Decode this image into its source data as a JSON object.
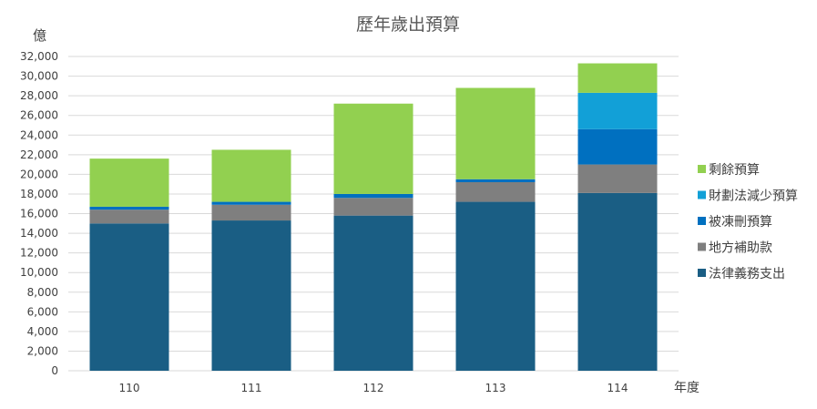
{
  "chart_data": {
    "type": "bar",
    "stacked": true,
    "title": "歷年歲出預算",
    "ylabel": "億",
    "xlabel": "年度",
    "ylim": [
      0,
      32000
    ],
    "ytick_step": 2000,
    "yticks": [
      "0",
      "2,000",
      "4,000",
      "6,000",
      "8,000",
      "10,000",
      "12,000",
      "14,000",
      "16,000",
      "18,000",
      "20,000",
      "22,000",
      "24,000",
      "26,000",
      "28,000",
      "30,000",
      "32,000"
    ],
    "categories": [
      "110",
      "111",
      "112",
      "113",
      "114"
    ],
    "legend_position": "right",
    "series": [
      {
        "name": "法律義務支出",
        "color": "#1a5e84",
        "values": [
          15000,
          15300,
          15800,
          17200,
          18100
        ]
      },
      {
        "name": "地方補助款",
        "color": "#7f7f7f",
        "values": [
          1400,
          1600,
          1800,
          2000,
          2900
        ]
      },
      {
        "name": "被凍刪預算",
        "color": "#0070c0",
        "values": [
          300,
          300,
          400,
          300,
          3600
        ]
      },
      {
        "name": "財劃法減少預算",
        "color": "#12a0d7",
        "values": [
          0,
          0,
          0,
          0,
          3700
        ]
      },
      {
        "name": "剩餘預算",
        "color": "#92d050",
        "values": [
          4900,
          5300,
          9200,
          9300,
          3000
        ]
      }
    ]
  }
}
